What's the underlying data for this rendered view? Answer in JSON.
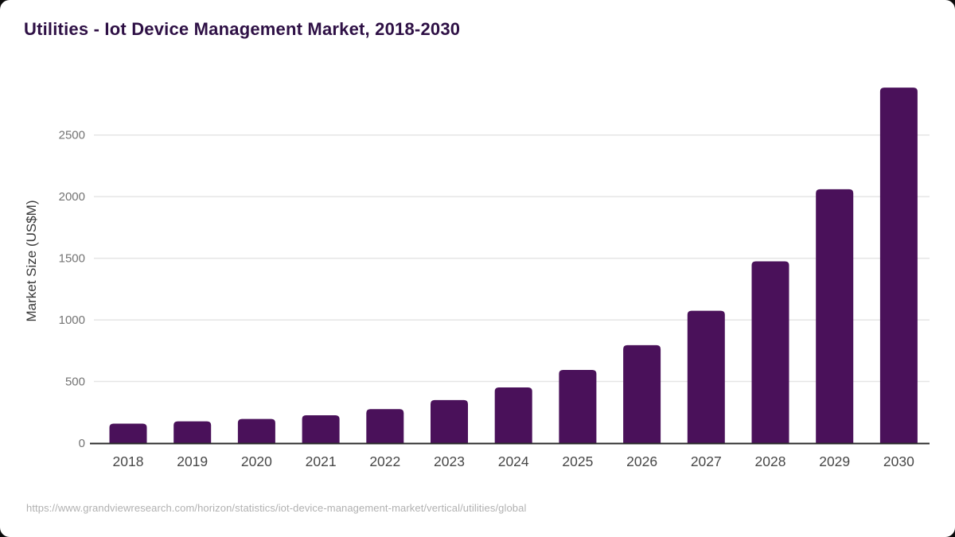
{
  "chart_data": {
    "type": "bar",
    "title": "Utilities - Iot Device Management Market, 2018-2030",
    "xlabel": "",
    "ylabel": "Market Size (US$M)",
    "categories": [
      "2018",
      "2019",
      "2020",
      "2021",
      "2022",
      "2023",
      "2024",
      "2025",
      "2026",
      "2027",
      "2028",
      "2029",
      "2030"
    ],
    "values": [
      158,
      177,
      196,
      226,
      276,
      349,
      452,
      594,
      795,
      1074,
      1475,
      2060,
      2885
    ],
    "yticks": [
      0,
      500,
      1000,
      1500,
      2000,
      2500
    ],
    "ylim": [
      0,
      2950
    ],
    "grid": true,
    "legend": "none",
    "bar_color": "#4a115a"
  },
  "footer": {
    "source_url": "https://www.grandviewresearch.com/horizon/statistics/iot-device-management-market/vertical/utilities/global"
  },
  "colors": {
    "title": "#2e1045",
    "bar": "#4a115a",
    "gridline": "#e5e5e5",
    "axis_line": "#2b2b2b",
    "y_tick_label": "#737373",
    "x_tick_label": "#474747",
    "y_axis_title": "#383838",
    "source_text": "#b1b1b1",
    "background": "#ffffff"
  }
}
